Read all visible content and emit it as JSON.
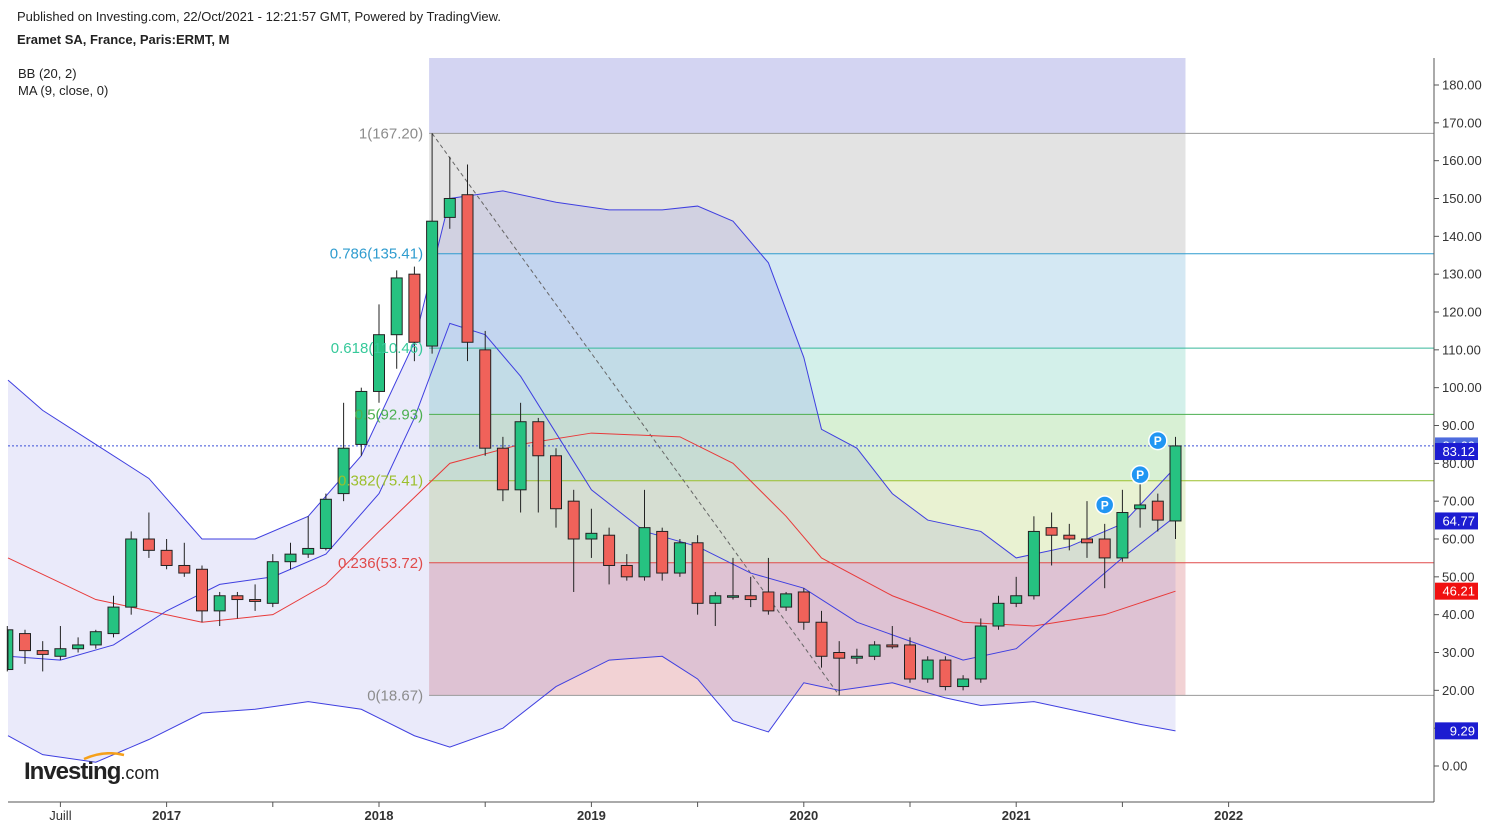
{
  "header": {
    "published": "Published on Investing.com, 22/Oct/2021 - 12:21:57 GMT, Powered by TradingView.",
    "symbol": "Eramet SA, France, Paris:ERMT, M"
  },
  "indicators": [
    "BB (20, 2)",
    "MA (9, close, 0)"
  ],
  "logo": {
    "main": "Investing",
    "suffix": ".com"
  },
  "colors": {
    "up": "#26c281",
    "down": "#f0625a",
    "bb_line": "#3f3fe0",
    "ma_line": "#e83a3a",
    "price_tag": "#3b3bd8",
    "ma_tag": "#f01010"
  },
  "chart_data": {
    "type": "candlestick",
    "interval": "monthly",
    "ylim": [
      -10,
      187
    ],
    "y_ticks": [
      0,
      10,
      20,
      30,
      40,
      50,
      60,
      70,
      80,
      90,
      100,
      110,
      120,
      130,
      140,
      150,
      160,
      170,
      180
    ],
    "y_tick_labels": [
      "0.00",
      "10.00",
      "20.00",
      "30.00",
      "40.00",
      "50.00",
      "60.00",
      "70.00",
      "80.00",
      "90.00",
      "100.00",
      "110.00",
      "120.00",
      "130.00",
      "140.00",
      "150.00",
      "160.00",
      "170.00",
      "180.00"
    ],
    "x_labels": [
      {
        "label": "Juill",
        "month": "2016-07",
        "bold": false
      },
      {
        "label": "2017",
        "month": "2017-01",
        "bold": true
      },
      {
        "label": "2018",
        "month": "2018-01",
        "bold": true
      },
      {
        "label": "2019",
        "month": "2019-01",
        "bold": true
      },
      {
        "label": "2020",
        "month": "2020-01",
        "bold": true
      },
      {
        "label": "2021",
        "month": "2021-01",
        "bold": true
      },
      {
        "label": "2022",
        "month": "2022-01",
        "bold": true
      }
    ],
    "candles": [
      {
        "m": "2016-04",
        "o": 25.5,
        "h": 37,
        "l": 25,
        "c": 36
      },
      {
        "m": "2016-05",
        "o": 35,
        "h": 36,
        "l": 27,
        "c": 30.5
      },
      {
        "m": "2016-06",
        "o": 30.5,
        "h": 33,
        "l": 25,
        "c": 29.5
      },
      {
        "m": "2016-07",
        "o": 29,
        "h": 37,
        "l": 28,
        "c": 31
      },
      {
        "m": "2016-08",
        "o": 31,
        "h": 34,
        "l": 30,
        "c": 32
      },
      {
        "m": "2016-09",
        "o": 32,
        "h": 36,
        "l": 31,
        "c": 35.5
      },
      {
        "m": "2016-10",
        "o": 35,
        "h": 45,
        "l": 34,
        "c": 42
      },
      {
        "m": "2016-11",
        "o": 42,
        "h": 62,
        "l": 40,
        "c": 60
      },
      {
        "m": "2016-12",
        "o": 60,
        "h": 67,
        "l": 55,
        "c": 57
      },
      {
        "m": "2017-01",
        "o": 57,
        "h": 60,
        "l": 52,
        "c": 53
      },
      {
        "m": "2017-02",
        "o": 53,
        "h": 59,
        "l": 50,
        "c": 51
      },
      {
        "m": "2017-03",
        "o": 52,
        "h": 53,
        "l": 38,
        "c": 41
      },
      {
        "m": "2017-04",
        "o": 41,
        "h": 46,
        "l": 37,
        "c": 45
      },
      {
        "m": "2017-05",
        "o": 45,
        "h": 46,
        "l": 39,
        "c": 44
      },
      {
        "m": "2017-06",
        "o": 44,
        "h": 48,
        "l": 41,
        "c": 43.5
      },
      {
        "m": "2017-07",
        "o": 43,
        "h": 56,
        "l": 42,
        "c": 54
      },
      {
        "m": "2017-08",
        "o": 54,
        "h": 59,
        "l": 52,
        "c": 56
      },
      {
        "m": "2017-09",
        "o": 56,
        "h": 66,
        "l": 55,
        "c": 57.5
      },
      {
        "m": "2017-10",
        "o": 57.5,
        "h": 72,
        "l": 57,
        "c": 70.5
      },
      {
        "m": "2017-11",
        "o": 72,
        "h": 96,
        "l": 70,
        "c": 84
      },
      {
        "m": "2017-12",
        "o": 85,
        "h": 100,
        "l": 82,
        "c": 99
      },
      {
        "m": "2018-01",
        "o": 99,
        "h": 122,
        "l": 96,
        "c": 114
      },
      {
        "m": "2018-02",
        "o": 114,
        "h": 131,
        "l": 105,
        "c": 129
      },
      {
        "m": "2018-03",
        "o": 130,
        "h": 132,
        "l": 107,
        "c": 112
      },
      {
        "m": "2018-04",
        "o": 111,
        "h": 167.2,
        "l": 109,
        "c": 144
      },
      {
        "m": "2018-05",
        "o": 145,
        "h": 161,
        "l": 142,
        "c": 150
      },
      {
        "m": "2018-06",
        "o": 151,
        "h": 159,
        "l": 107,
        "c": 112
      },
      {
        "m": "2018-07",
        "o": 110,
        "h": 115,
        "l": 82,
        "c": 84
      },
      {
        "m": "2018-08",
        "o": 84,
        "h": 87,
        "l": 70,
        "c": 73
      },
      {
        "m": "2018-09",
        "o": 73,
        "h": 96,
        "l": 67,
        "c": 91
      },
      {
        "m": "2018-10",
        "o": 91,
        "h": 92,
        "l": 67,
        "c": 82
      },
      {
        "m": "2018-11",
        "o": 82,
        "h": 84,
        "l": 63,
        "c": 68
      },
      {
        "m": "2018-12",
        "o": 70,
        "h": 73,
        "l": 46,
        "c": 60
      },
      {
        "m": "2019-01",
        "o": 60,
        "h": 68,
        "l": 55,
        "c": 61.5
      },
      {
        "m": "2019-02",
        "o": 61,
        "h": 63,
        "l": 48,
        "c": 53
      },
      {
        "m": "2019-03",
        "o": 53,
        "h": 56,
        "l": 49,
        "c": 50
      },
      {
        "m": "2019-04",
        "o": 50,
        "h": 73,
        "l": 49,
        "c": 63
      },
      {
        "m": "2019-05",
        "o": 62,
        "h": 63,
        "l": 49,
        "c": 51
      },
      {
        "m": "2019-06",
        "o": 51,
        "h": 60,
        "l": 50,
        "c": 59
      },
      {
        "m": "2019-07",
        "o": 59,
        "h": 61,
        "l": 40,
        "c": 43
      },
      {
        "m": "2019-08",
        "o": 43,
        "h": 46,
        "l": 37,
        "c": 45
      },
      {
        "m": "2019-09",
        "o": 45,
        "h": 55,
        "l": 44,
        "c": 45
      },
      {
        "m": "2019-10",
        "o": 45,
        "h": 50,
        "l": 42,
        "c": 44
      },
      {
        "m": "2019-11",
        "o": 46,
        "h": 55,
        "l": 40,
        "c": 41
      },
      {
        "m": "2019-12",
        "o": 42,
        "h": 46,
        "l": 41,
        "c": 45.5
      },
      {
        "m": "2020-01",
        "o": 46,
        "h": 47,
        "l": 36,
        "c": 38
      },
      {
        "m": "2020-02",
        "o": 38,
        "h": 41,
        "l": 26,
        "c": 29
      },
      {
        "m": "2020-03",
        "o": 30,
        "h": 33,
        "l": 18.67,
        "c": 28.5
      },
      {
        "m": "2020-04",
        "o": 28.5,
        "h": 31,
        "l": 27,
        "c": 29
      },
      {
        "m": "2020-05",
        "o": 29,
        "h": 33,
        "l": 28,
        "c": 32
      },
      {
        "m": "2020-06",
        "o": 32,
        "h": 37,
        "l": 31,
        "c": 31.5
      },
      {
        "m": "2020-07",
        "o": 32,
        "h": 34,
        "l": 22,
        "c": 23
      },
      {
        "m": "2020-08",
        "o": 23,
        "h": 29,
        "l": 22,
        "c": 28
      },
      {
        "m": "2020-09",
        "o": 28,
        "h": 29,
        "l": 20,
        "c": 21
      },
      {
        "m": "2020-10",
        "o": 21,
        "h": 24,
        "l": 20,
        "c": 23
      },
      {
        "m": "2020-11",
        "o": 23,
        "h": 39,
        "l": 22,
        "c": 37
      },
      {
        "m": "2020-12",
        "o": 37,
        "h": 45,
        "l": 36,
        "c": 43
      },
      {
        "m": "2021-01",
        "o": 43,
        "h": 50,
        "l": 42,
        "c": 45
      },
      {
        "m": "2021-02",
        "o": 45,
        "h": 66,
        "l": 44,
        "c": 62
      },
      {
        "m": "2021-03",
        "o": 63,
        "h": 67,
        "l": 53,
        "c": 61
      },
      {
        "m": "2021-04",
        "o": 61,
        "h": 64,
        "l": 57,
        "c": 60
      },
      {
        "m": "2021-05",
        "o": 60,
        "h": 70,
        "l": 55,
        "c": 59
      },
      {
        "m": "2021-06",
        "o": 60,
        "h": 64,
        "l": 47,
        "c": 55
      },
      {
        "m": "2021-07",
        "o": 55,
        "h": 73,
        "l": 54,
        "c": 67
      },
      {
        "m": "2021-08",
        "o": 68,
        "h": 77,
        "l": 63,
        "c": 69
      },
      {
        "m": "2021-09",
        "o": 70,
        "h": 72,
        "l": 62,
        "c": 65
      },
      {
        "m": "2021-10",
        "o": 64.77,
        "h": 87,
        "l": 60,
        "c": 84.6
      }
    ],
    "bollinger": {
      "period": 20,
      "stddev": 2,
      "upper": [
        {
          "m": "2016-03",
          "v": 102
        },
        {
          "m": "2016-06",
          "v": 94
        },
        {
          "m": "2016-09",
          "v": 85
        },
        {
          "m": "2016-12",
          "v": 76
        },
        {
          "m": "2017-03",
          "v": 60
        },
        {
          "m": "2017-06",
          "v": 60
        },
        {
          "m": "2017-09",
          "v": 66
        },
        {
          "m": "2017-12",
          "v": 82
        },
        {
          "m": "2018-03",
          "v": 112
        },
        {
          "m": "2018-05",
          "v": 150
        },
        {
          "m": "2018-08",
          "v": 152
        },
        {
          "m": "2018-11",
          "v": 149
        },
        {
          "m": "2019-02",
          "v": 147
        },
        {
          "m": "2019-05",
          "v": 147
        },
        {
          "m": "2019-07",
          "v": 148
        },
        {
          "m": "2019-09",
          "v": 144
        },
        {
          "m": "2019-11",
          "v": 133
        },
        {
          "m": "2020-01",
          "v": 108
        },
        {
          "m": "2020-02",
          "v": 89
        },
        {
          "m": "2020-04",
          "v": 84
        },
        {
          "m": "2020-06",
          "v": 72
        },
        {
          "m": "2020-08",
          "v": 65
        },
        {
          "m": "2020-11",
          "v": 62
        },
        {
          "m": "2021-01",
          "v": 55
        },
        {
          "m": "2021-04",
          "v": 58
        },
        {
          "m": "2021-07",
          "v": 64
        },
        {
          "m": "2021-10",
          "v": 79
        }
      ],
      "lower": [
        {
          "m": "2016-03",
          "v": 8
        },
        {
          "m": "2016-06",
          "v": 3
        },
        {
          "m": "2016-09",
          "v": 1
        },
        {
          "m": "2016-12",
          "v": 7
        },
        {
          "m": "2017-03",
          "v": 14
        },
        {
          "m": "2017-06",
          "v": 15
        },
        {
          "m": "2017-09",
          "v": 17
        },
        {
          "m": "2017-12",
          "v": 15
        },
        {
          "m": "2018-03",
          "v": 8
        },
        {
          "m": "2018-05",
          "v": 5
        },
        {
          "m": "2018-08",
          "v": 10
        },
        {
          "m": "2018-11",
          "v": 21
        },
        {
          "m": "2019-02",
          "v": 28
        },
        {
          "m": "2019-05",
          "v": 29
        },
        {
          "m": "2019-07",
          "v": 23
        },
        {
          "m": "2019-09",
          "v": 12
        },
        {
          "m": "2019-11",
          "v": 9
        },
        {
          "m": "2020-01",
          "v": 22
        },
        {
          "m": "2020-03",
          "v": 20
        },
        {
          "m": "2020-06",
          "v": 22
        },
        {
          "m": "2020-09",
          "v": 18
        },
        {
          "m": "2020-11",
          "v": 16
        },
        {
          "m": "2021-02",
          "v": 17
        },
        {
          "m": "2021-05",
          "v": 14
        },
        {
          "m": "2021-08",
          "v": 11
        },
        {
          "m": "2021-10",
          "v": 9.29
        }
      ],
      "basis": [
        {
          "m": "2016-04",
          "v": 55
        },
        {
          "m": "2016-09",
          "v": 44
        },
        {
          "m": "2017-03",
          "v": 38
        },
        {
          "m": "2017-07",
          "v": 40
        },
        {
          "m": "2017-10",
          "v": 48
        },
        {
          "m": "2018-01",
          "v": 62
        },
        {
          "m": "2018-05",
          "v": 80
        },
        {
          "m": "2018-09",
          "v": 85
        },
        {
          "m": "2019-01",
          "v": 88
        },
        {
          "m": "2019-06",
          "v": 87
        },
        {
          "m": "2019-09",
          "v": 80
        },
        {
          "m": "2019-12",
          "v": 66
        },
        {
          "m": "2020-02",
          "v": 55
        },
        {
          "m": "2020-06",
          "v": 45
        },
        {
          "m": "2020-10",
          "v": 38
        },
        {
          "m": "2021-02",
          "v": 37
        },
        {
          "m": "2021-06",
          "v": 40
        },
        {
          "m": "2021-10",
          "v": 46.21
        }
      ]
    },
    "moving_average": {
      "period": 9,
      "values": [
        {
          "m": "2016-04",
          "v": 29
        },
        {
          "m": "2016-07",
          "v": 28
        },
        {
          "m": "2016-10",
          "v": 32
        },
        {
          "m": "2017-01",
          "v": 41
        },
        {
          "m": "2017-04",
          "v": 48
        },
        {
          "m": "2017-07",
          "v": 50
        },
        {
          "m": "2017-10",
          "v": 56
        },
        {
          "m": "2018-01",
          "v": 72
        },
        {
          "m": "2018-03",
          "v": 92
        },
        {
          "m": "2018-05",
          "v": 117
        },
        {
          "m": "2018-07",
          "v": 114
        },
        {
          "m": "2018-09",
          "v": 103
        },
        {
          "m": "2018-11",
          "v": 88
        },
        {
          "m": "2019-01",
          "v": 73
        },
        {
          "m": "2019-04",
          "v": 62
        },
        {
          "m": "2019-07",
          "v": 58
        },
        {
          "m": "2019-10",
          "v": 51
        },
        {
          "m": "2020-01",
          "v": 47
        },
        {
          "m": "2020-04",
          "v": 38
        },
        {
          "m": "2020-07",
          "v": 33
        },
        {
          "m": "2020-10",
          "v": 28
        },
        {
          "m": "2021-01",
          "v": 31
        },
        {
          "m": "2021-04",
          "v": 43
        },
        {
          "m": "2021-07",
          "v": 55
        },
        {
          "m": "2021-10",
          "v": 66
        }
      ]
    },
    "fibonacci": {
      "start": {
        "m": "2018-04",
        "v": 167.2
      },
      "end": {
        "m": "2020-03",
        "v": 18.67
      },
      "right_edge_month": "2021-10",
      "levels": [
        {
          "ratio": "1",
          "value": 167.2,
          "label": "1(167.20)",
          "label_color": "#8c8c8c",
          "line_color": "#9a9a9a",
          "fill": "#e3e3e3"
        },
        {
          "ratio": "0.786",
          "value": 135.41,
          "label": "0.786(135.41)",
          "label_color": "#2f9ccf",
          "line_color": "#2f9ccf",
          "fill": "#d4e8f3"
        },
        {
          "ratio": "0.618",
          "value": 110.46,
          "label": "0.618(110.46)",
          "label_color": "#36c99a",
          "line_color": "#36b89a",
          "fill": "#d3f0ea"
        },
        {
          "ratio": "0.5",
          "value": 92.93,
          "label": "0.5(92.93)",
          "label_color": "#4caf50",
          "line_color": "#4caf50",
          "fill": "#d8f0d4"
        },
        {
          "ratio": "0.382",
          "value": 75.41,
          "label": "0.382(75.41)",
          "label_color": "#9cbf2c",
          "line_color": "#9cbf2c",
          "fill": "#e9f2d2"
        },
        {
          "ratio": "0.236",
          "value": 53.72,
          "label": "0.236(53.72)",
          "label_color": "#e04a4a",
          "line_color": "#e04a4a",
          "fill": "#f2d2d4"
        },
        {
          "ratio": "0",
          "value": 18.67,
          "label": "0(18.67)",
          "label_color": "#8c8c8c",
          "line_color": "#9a9a9a",
          "fill": ""
        }
      ],
      "extension_fill": "#d3d4f2"
    },
    "price_line": 84.6,
    "price_tags": [
      {
        "value": 84.6,
        "label": "84.60",
        "color": "#4d6bde"
      },
      {
        "value": 83.12,
        "label": "83.12",
        "color": "#1c1cd1"
      },
      {
        "value": 64.77,
        "label": "64.77",
        "color": "#1c1cd1"
      },
      {
        "value": 46.21,
        "label": "46.21",
        "color": "#f01010"
      },
      {
        "value": 9.29,
        "label": "9.29",
        "color": "#1c1cd1"
      }
    ],
    "pivot_markers": [
      {
        "m": "2021-06",
        "v": 69,
        "label": "P"
      },
      {
        "m": "2021-08",
        "v": 77,
        "label": "P"
      },
      {
        "m": "2021-09",
        "v": 86,
        "label": "P"
      }
    ]
  }
}
